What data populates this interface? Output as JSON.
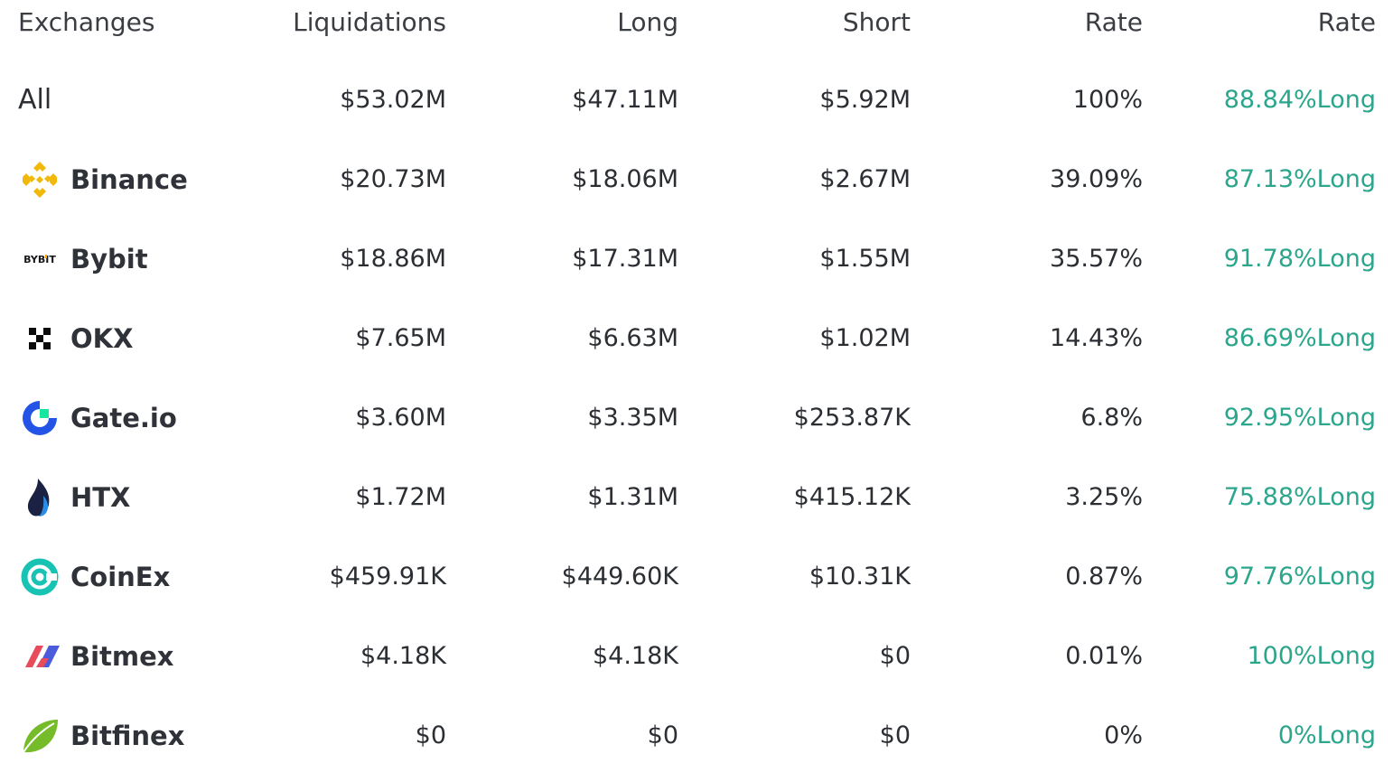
{
  "header": {
    "exchanges": "Exchanges",
    "liquidations": "Liquidations",
    "long": "Long",
    "short": "Short",
    "rate": "Rate",
    "rate2": "Rate"
  },
  "all_row": {
    "label": "All",
    "liquidations": "$53.02M",
    "long": "$47.11M",
    "short": "$5.92M",
    "rate": "100%",
    "long_rate": "88.84%Long"
  },
  "rows": [
    {
      "name": "Binance",
      "icon": "binance-icon",
      "liquidations": "$20.73M",
      "long": "$18.06M",
      "short": "$2.67M",
      "rate": "39.09%",
      "long_rate": "87.13%Long"
    },
    {
      "name": "Bybit",
      "icon": "bybit-icon",
      "liquidations": "$18.86M",
      "long": "$17.31M",
      "short": "$1.55M",
      "rate": "35.57%",
      "long_rate": "91.78%Long"
    },
    {
      "name": "OKX",
      "icon": "okx-icon",
      "liquidations": "$7.65M",
      "long": "$6.63M",
      "short": "$1.02M",
      "rate": "14.43%",
      "long_rate": "86.69%Long"
    },
    {
      "name": "Gate.io",
      "icon": "gate-io-icon",
      "liquidations": "$3.60M",
      "long": "$3.35M",
      "short": "$253.87K",
      "rate": "6.8%",
      "long_rate": "92.95%Long"
    },
    {
      "name": "HTX",
      "icon": "htx-icon",
      "liquidations": "$1.72M",
      "long": "$1.31M",
      "short": "$415.12K",
      "rate": "3.25%",
      "long_rate": "75.88%Long"
    },
    {
      "name": "CoinEx",
      "icon": "coinex-icon",
      "liquidations": "$459.91K",
      "long": "$449.60K",
      "short": "$10.31K",
      "rate": "0.87%",
      "long_rate": "97.76%Long"
    },
    {
      "name": "Bitmex",
      "icon": "bitmex-icon",
      "liquidations": "$4.18K",
      "long": "$4.18K",
      "short": "$0",
      "rate": "0.01%",
      "long_rate": "100%Long"
    },
    {
      "name": "Bitfinex",
      "icon": "bitfinex-icon",
      "liquidations": "$0",
      "long": "$0",
      "short": "$0",
      "rate": "0%",
      "long_rate": "0%Long"
    }
  ],
  "icons": {
    "bybit_text": "BYBIT"
  },
  "colors": {
    "long_green": "#2ca58d",
    "binance_yellow": "#f0b90b",
    "gate_blue": "#2354e6",
    "gate_green": "#17e6a1",
    "htx_navy": "#1b2143",
    "htx_blue": "#2b8ce8",
    "coinex_teal": "#19c3b4",
    "bitmex_red": "#e84b5b",
    "bitmex_blue": "#4a5bdb",
    "bitfinex_green": "#76bc2a"
  }
}
